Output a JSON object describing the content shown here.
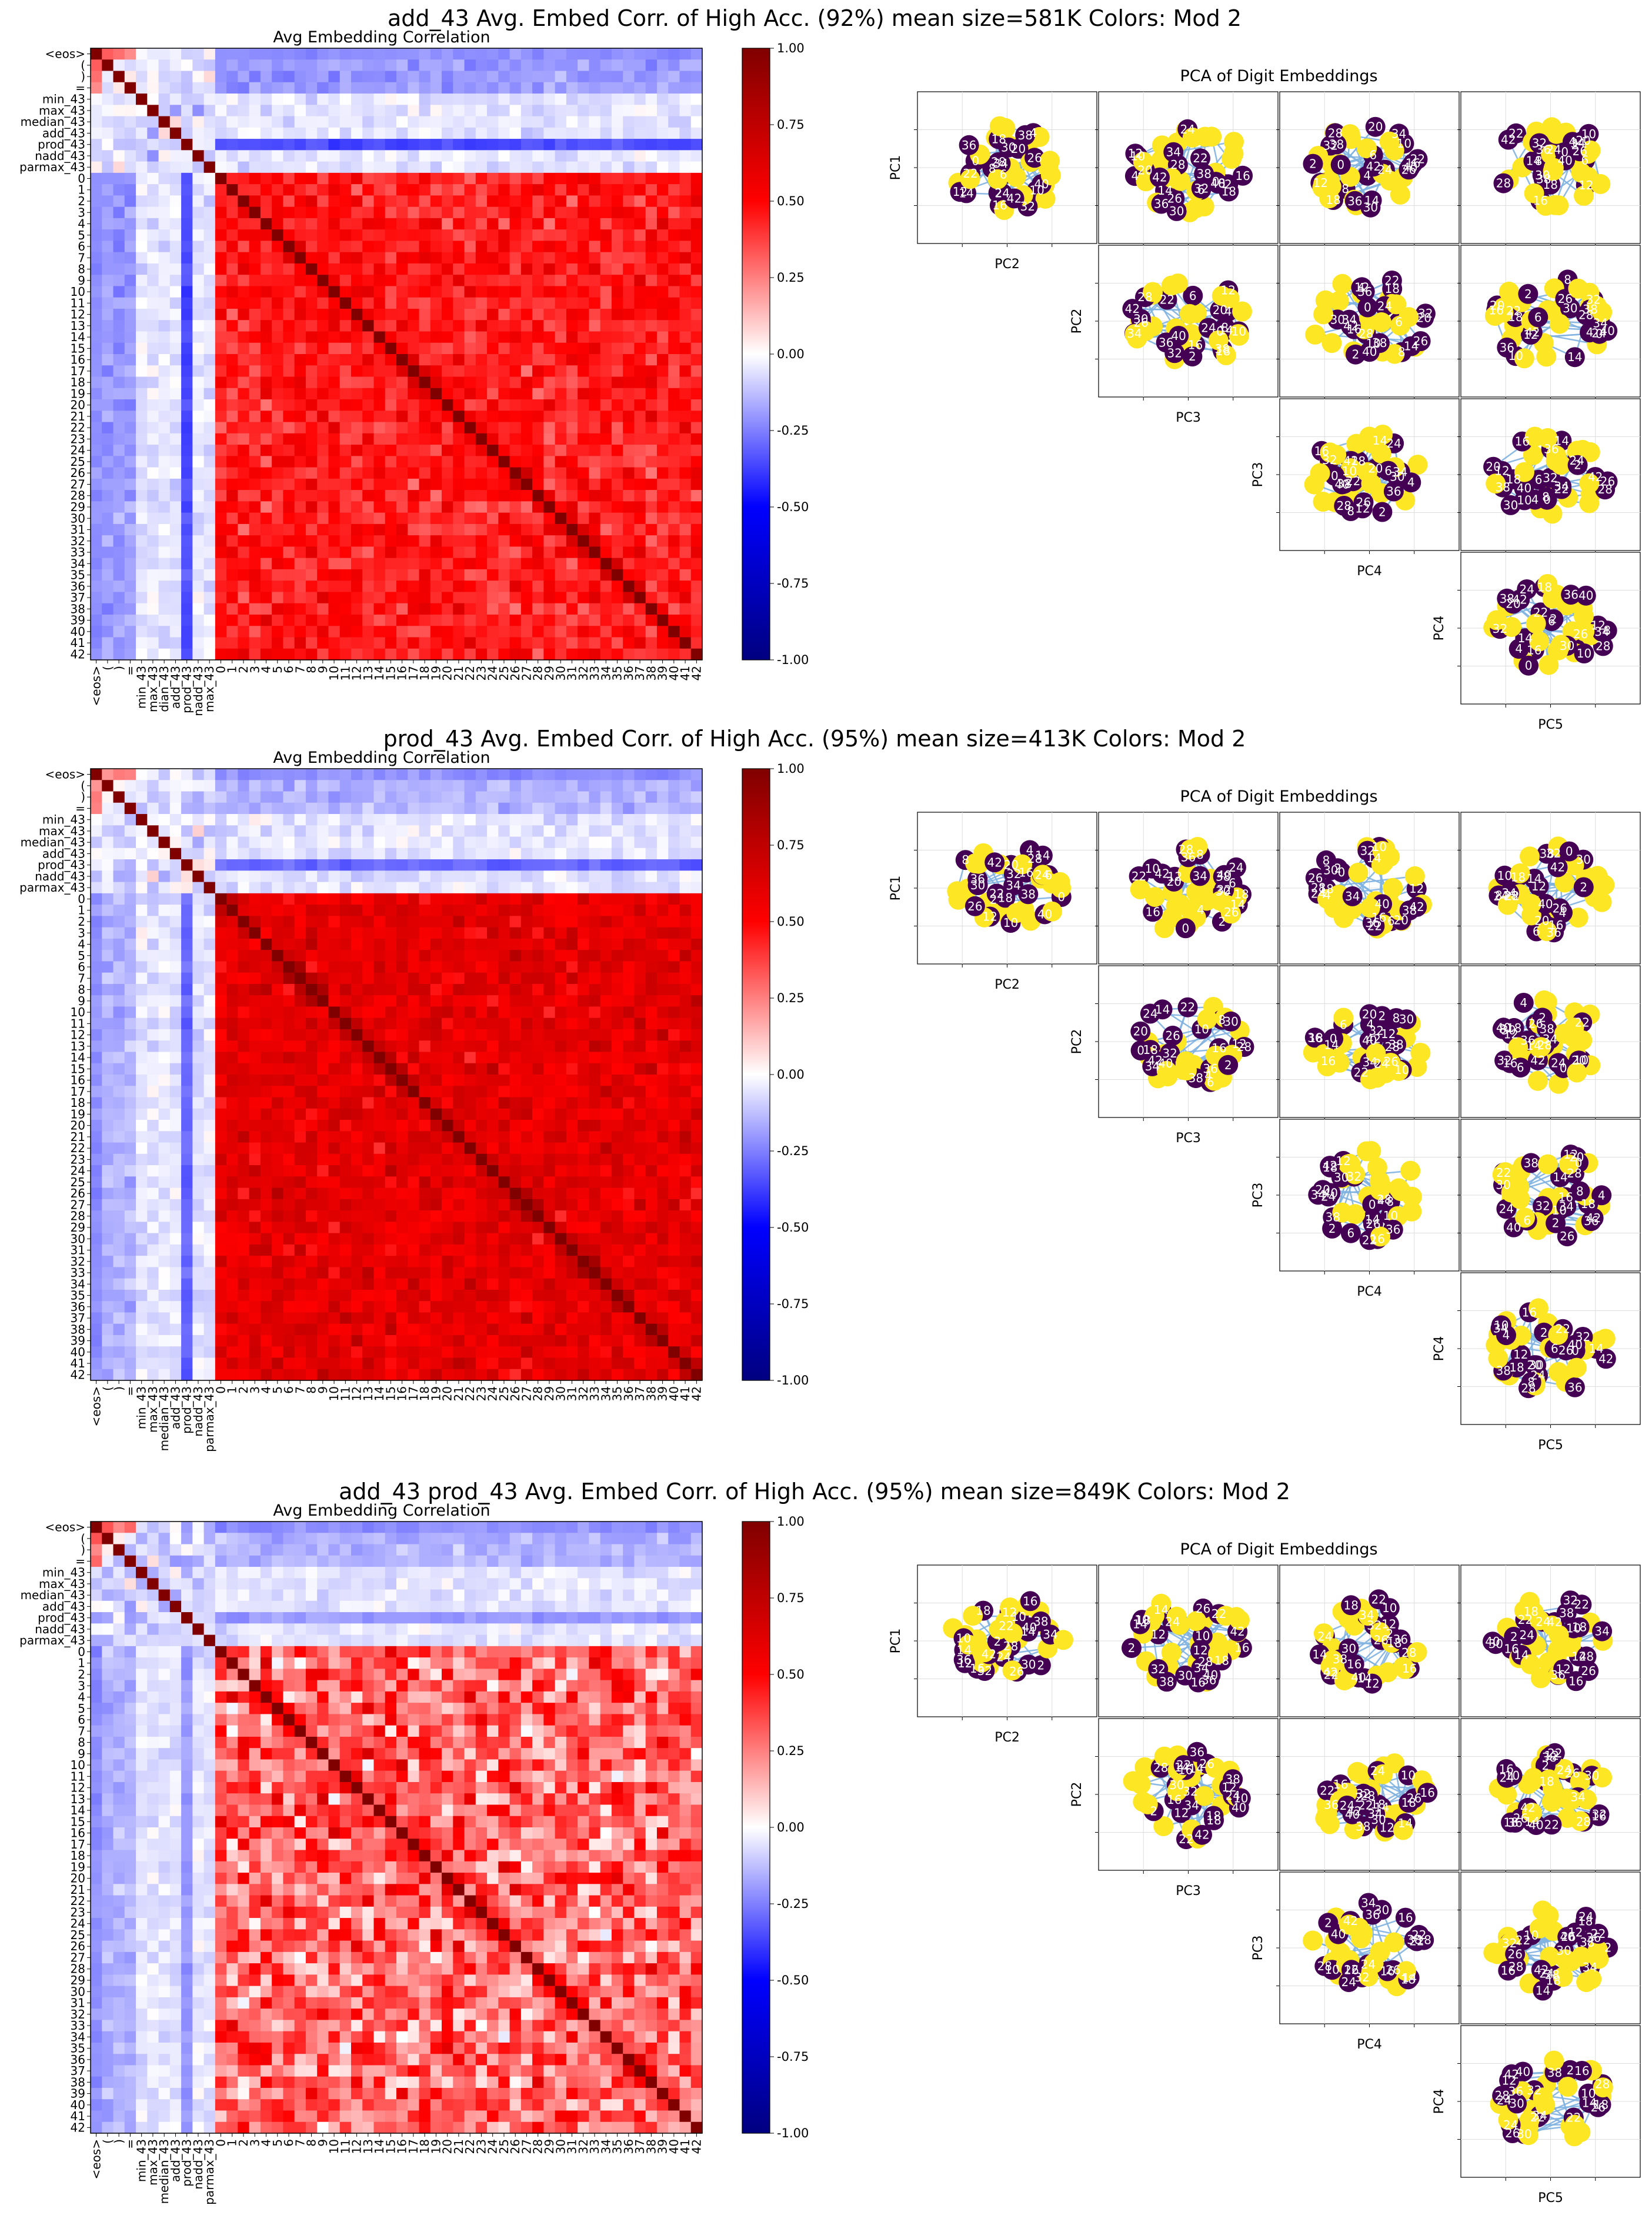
{
  "colors": {
    "red": "#ff0000",
    "dark_red": "#800000",
    "blue": "#0000ff",
    "dark_blue": "#000080",
    "purple": "#440154",
    "yellow": "#fde725",
    "edge": "#7fb2e0",
    "grid": "#dddddd"
  },
  "chart_data": [
    {
      "type": "heatmap",
      "panel": 1,
      "suptitle": "add_43 Avg. Embed Corr. of High Acc. (92%) mean size=581K Colors: Mod 2",
      "title": "Avg Embedding Correlation",
      "labels": [
        "<eos>",
        "(",
        ")",
        "=",
        "min_43",
        "max_43",
        "median_43",
        "add_43",
        "prod_43",
        "nadd_43",
        "parmax_43",
        "0",
        "1",
        "2",
        "3",
        "4",
        "5",
        "6",
        "7",
        "8",
        "9",
        "10",
        "11",
        "12",
        "13",
        "14",
        "15",
        "16",
        "17",
        "18",
        "19",
        "20",
        "21",
        "22",
        "23",
        "24",
        "25",
        "26",
        "27",
        "28",
        "29",
        "30",
        "31",
        "32",
        "33",
        "34",
        "35",
        "36",
        "37",
        "38",
        "39",
        "40",
        "41",
        "42"
      ],
      "x_tick_labels_shown": [
        "<eos>",
        "(",
        ")",
        "=",
        "min_43",
        "max_43",
        "dian_43",
        "add_43",
        "prod_43",
        "nadd_43",
        "max_43",
        "0",
        "1",
        "2",
        "3",
        "4",
        "5",
        "6",
        "7",
        "8",
        "9",
        "10",
        "11",
        "12",
        "13",
        "14",
        "15",
        "16",
        "17",
        "18",
        "19",
        "20",
        "21",
        "22",
        "23",
        "24",
        "25",
        "26",
        "27",
        "28",
        "29",
        "30",
        "31",
        "32",
        "33",
        "34",
        "35",
        "36",
        "37",
        "38",
        "39",
        "40",
        "41",
        "42"
      ],
      "vmin": -1.0,
      "vmax": 1.0,
      "colorbar_ticks": [
        "1.00",
        "0.75",
        "0.50",
        "0.25",
        "0.00",
        "-0.25",
        "-0.50",
        "-0.75",
        "-1.00"
      ],
      "diagonal": 1.0,
      "approx_block_means": {
        "digits_vs_digits": 0.45,
        "digits_vs_tokens": -0.2,
        "tokens_vs_tokens": -0.05,
        "prod_43_vs_digits": -0.35
      },
      "pca_title": "PCA of Digit Embeddings",
      "pca_row_labels": [
        "PC1",
        "PC2",
        "PC3",
        "PC4"
      ],
      "pca_col_labels": [
        "PC2",
        "PC3",
        "PC4",
        "PC5"
      ],
      "pca_point_labels": [
        "0",
        "2",
        "4",
        "6",
        "8",
        "10",
        "12",
        "14",
        "16",
        "18",
        "20",
        "22",
        "24",
        "26",
        "28",
        "30",
        "32",
        "34",
        "36",
        "38",
        "40",
        "42"
      ]
    },
    {
      "type": "heatmap",
      "panel": 2,
      "suptitle": "prod_43 Avg. Embed Corr. of High Acc. (95%) mean size=413K Colors: Mod 2",
      "title": "Avg Embedding Correlation",
      "labels": [
        "<eos>",
        "(",
        ")",
        "=",
        "min_43",
        "max_43",
        "median_43",
        "add_43",
        "prod_43",
        "nadd_43",
        "parmax_43",
        "0",
        "1",
        "2",
        "3",
        "4",
        "5",
        "6",
        "7",
        "8",
        "9",
        "10",
        "11",
        "12",
        "13",
        "14",
        "15",
        "16",
        "17",
        "18",
        "19",
        "20",
        "21",
        "22",
        "23",
        "24",
        "25",
        "26",
        "27",
        "28",
        "29",
        "30",
        "31",
        "32",
        "33",
        "34",
        "35",
        "36",
        "37",
        "38",
        "39",
        "40",
        "41",
        "42"
      ],
      "x_tick_labels_shown": [
        "<eos>",
        "(",
        ")",
        "=",
        "min_43",
        "max_43",
        "median_43",
        "add_43",
        "prod_43",
        "nadd_43",
        "parmax_43",
        "0",
        "1",
        "2",
        "3",
        "4",
        "5",
        "6",
        "7",
        "8",
        "9",
        "10",
        "11",
        "12",
        "13",
        "14",
        "15",
        "16",
        "17",
        "18",
        "19",
        "20",
        "21",
        "22",
        "23",
        "24",
        "25",
        "26",
        "27",
        "28",
        "29",
        "30",
        "31",
        "32",
        "33",
        "34",
        "35",
        "36",
        "37",
        "38",
        "39",
        "40",
        "41",
        "42"
      ],
      "vmin": -1.0,
      "vmax": 1.0,
      "colorbar_ticks": [
        "1.00",
        "0.75",
        "0.50",
        "0.25",
        "0.00",
        "-0.25",
        "-0.50",
        "-0.75",
        "-1.00"
      ],
      "diagonal": 1.0,
      "approx_block_means": {
        "digits_vs_digits": 0.6,
        "digits_vs_tokens": -0.15,
        "tokens_vs_tokens": -0.05,
        "prod_43_vs_digits": -0.3
      },
      "pca_title": "PCA of Digit Embeddings",
      "pca_row_labels": [
        "PC1",
        "PC2",
        "PC3",
        "PC4"
      ],
      "pca_col_labels": [
        "PC2",
        "PC3",
        "PC4",
        "PC5"
      ],
      "pca_point_labels": [
        "0",
        "2",
        "4",
        "6",
        "8",
        "10",
        "12",
        "14",
        "16",
        "18",
        "20",
        "22",
        "24",
        "26",
        "28",
        "30",
        "32",
        "34",
        "36",
        "38",
        "40",
        "42"
      ]
    },
    {
      "type": "heatmap",
      "panel": 3,
      "suptitle": "add_43 prod_43 Avg. Embed Corr. of High Acc. (95%) mean size=849K Colors: Mod 2",
      "title": "Avg Embedding Correlation",
      "labels": [
        "<eos>",
        "(",
        ")",
        "=",
        "min_43",
        "max_43",
        "median_43",
        "add_43",
        "prod_43",
        "nadd_43",
        "parmax_43",
        "0",
        "1",
        "2",
        "3",
        "4",
        "5",
        "6",
        "7",
        "8",
        "9",
        "10",
        "11",
        "12",
        "13",
        "14",
        "15",
        "16",
        "17",
        "18",
        "19",
        "20",
        "21",
        "22",
        "23",
        "24",
        "25",
        "26",
        "27",
        "28",
        "29",
        "30",
        "31",
        "32",
        "33",
        "34",
        "35",
        "36",
        "37",
        "38",
        "39",
        "40",
        "41",
        "42"
      ],
      "x_tick_labels_shown": [
        "<eos>",
        "(",
        ")",
        "=",
        "min_43",
        "max_43",
        "median_43",
        "add_43",
        "prod_43",
        "nadd_43",
        "parmax_43",
        "0",
        "1",
        "2",
        "3",
        "4",
        "5",
        "6",
        "7",
        "8",
        "9",
        "10",
        "11",
        "12",
        "13",
        "14",
        "15",
        "16",
        "17",
        "18",
        "19",
        "20",
        "21",
        "22",
        "23",
        "24",
        "25",
        "26",
        "27",
        "28",
        "29",
        "30",
        "31",
        "32",
        "33",
        "34",
        "35",
        "36",
        "37",
        "38",
        "39",
        "40",
        "41",
        "42"
      ],
      "vmin": -1.0,
      "vmax": 1.0,
      "colorbar_ticks": [
        "1.00",
        "0.75",
        "0.50",
        "0.25",
        "0.00",
        "-0.25",
        "-0.50",
        "-0.75",
        "-1.00"
      ],
      "diagonal": 1.0,
      "approx_block_means": {
        "digits_vs_digits": 0.3,
        "digits_vs_tokens": -0.15,
        "tokens_vs_tokens": -0.1,
        "prod_43_vs_digits": -0.2
      },
      "pca_title": "PCA of Digit Embeddings",
      "pca_row_labels": [
        "PC1",
        "PC2",
        "PC3",
        "PC4"
      ],
      "pca_col_labels": [
        "PC2",
        "PC3",
        "PC4",
        "PC5"
      ],
      "pca_point_labels": [
        "2",
        "10",
        "12",
        "14",
        "16",
        "18",
        "22",
        "24",
        "26",
        "28",
        "30",
        "32",
        "34",
        "36",
        "38",
        "40",
        "42"
      ]
    }
  ]
}
